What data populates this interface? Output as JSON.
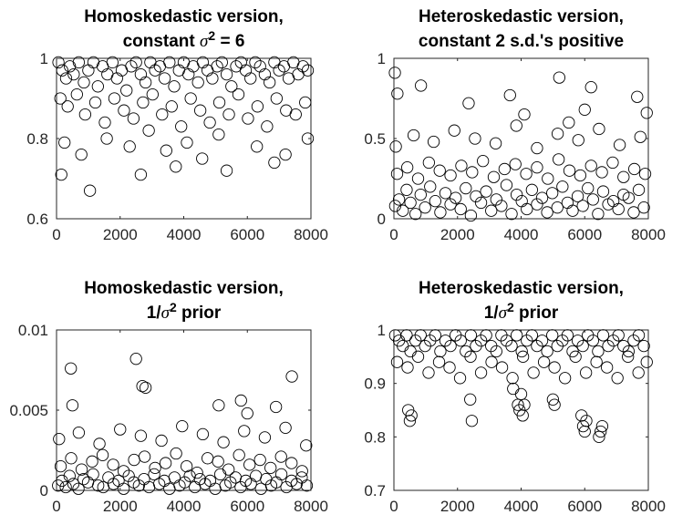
{
  "chart_data": [
    {
      "type": "scatter",
      "title_parts": [
        [
          {
            "t": "Homoskedastic version,"
          }
        ],
        [
          {
            "t": "constant "
          },
          {
            "t": "σ",
            "sym": true
          },
          {
            "t": "2",
            "sup": true
          },
          {
            "t": " = 6"
          }
        ]
      ],
      "xlim": [
        0,
        8000
      ],
      "ylim": [
        0.6,
        1.0
      ],
      "xticks": [
        0,
        2000,
        4000,
        6000,
        8000
      ],
      "yticks": [
        0.6,
        0.8,
        1.0
      ],
      "xtick_labels": [
        "0",
        "2000",
        "4000",
        "6000",
        "8000"
      ],
      "ytick_labels": [
        "0.6",
        "0.8",
        "1"
      ],
      "marker": "open-circle",
      "grid": false,
      "legend": null,
      "x": [
        60,
        180,
        300,
        420,
        540,
        700,
        860,
        1000,
        1160,
        1300,
        1450,
        1600,
        1760,
        1900,
        2050,
        2200,
        2350,
        2500,
        2650,
        2800,
        2950,
        3100,
        3250,
        3400,
        3550,
        3700,
        3850,
        4000,
        4150,
        4300,
        4450,
        4600,
        4750,
        4900,
        5050,
        5200,
        5350,
        5500,
        5650,
        5800,
        5950,
        6100,
        6250,
        6400,
        6550,
        6700,
        6850,
        7000,
        7150,
        7300,
        7450,
        7600,
        7750,
        7900,
        120,
        350,
        640,
        900,
        1220,
        1520,
        1820,
        2120,
        2420,
        2720,
        3020,
        3320,
        3620,
        3920,
        4220,
        4520,
        4820,
        5120,
        5420,
        5720,
        6020,
        6320,
        6620,
        6920,
        7220,
        7520,
        7820,
        250,
        780,
        1580,
        2300,
        2900,
        3450,
        4100,
        4580,
        5100,
        6300,
        7200,
        7900,
        150,
        1050,
        2650,
        3750,
        5350,
        6850
      ],
      "y": [
        0.99,
        0.97,
        0.95,
        0.98,
        0.96,
        0.99,
        0.94,
        0.97,
        0.99,
        0.93,
        0.98,
        0.96,
        0.99,
        0.95,
        0.97,
        0.92,
        0.98,
        0.99,
        0.96,
        0.94,
        0.99,
        0.97,
        0.98,
        0.95,
        0.99,
        0.93,
        0.97,
        0.99,
        0.96,
        0.98,
        0.94,
        0.99,
        0.97,
        0.95,
        0.98,
        0.99,
        0.96,
        0.93,
        0.98,
        0.99,
        0.97,
        0.95,
        0.99,
        0.98,
        0.96,
        0.94,
        0.99,
        0.97,
        0.98,
        0.95,
        0.99,
        0.96,
        0.98,
        0.97,
        0.9,
        0.88,
        0.91,
        0.86,
        0.89,
        0.84,
        0.9,
        0.87,
        0.85,
        0.89,
        0.91,
        0.86,
        0.88,
        0.83,
        0.9,
        0.87,
        0.84,
        0.89,
        0.86,
        0.91,
        0.85,
        0.88,
        0.83,
        0.9,
        0.87,
        0.86,
        0.89,
        0.79,
        0.76,
        0.8,
        0.78,
        0.82,
        0.77,
        0.79,
        0.75,
        0.81,
        0.78,
        0.76,
        0.8,
        0.71,
        0.67,
        0.71,
        0.73,
        0.72,
        0.74
      ]
    },
    {
      "type": "scatter",
      "title_parts": [
        [
          {
            "t": "Heteroskedastic version,"
          }
        ],
        [
          {
            "t": "constant 2 s.d.'s positive"
          }
        ]
      ],
      "xlim": [
        0,
        8000
      ],
      "ylim": [
        0,
        1.0
      ],
      "xticks": [
        0,
        2000,
        4000,
        6000,
        8000
      ],
      "yticks": [
        0,
        0.5,
        1.0
      ],
      "xtick_labels": [
        "0",
        "2000",
        "4000",
        "6000",
        "8000"
      ],
      "ytick_labels": [
        "0",
        "0.5",
        "1"
      ],
      "marker": "open-circle",
      "grid": false,
      "legend": null,
      "x": [
        40,
        160,
        280,
        400,
        520,
        680,
        840,
        980,
        1140,
        1300,
        1460,
        1620,
        1780,
        1940,
        2100,
        2260,
        2420,
        2580,
        2740,
        2900,
        3060,
        3220,
        3380,
        3540,
        3700,
        3860,
        4020,
        4180,
        4340,
        4500,
        4660,
        4820,
        4980,
        5140,
        5300,
        5460,
        5620,
        5780,
        5940,
        6100,
        6260,
        6420,
        6580,
        6740,
        6900,
        7060,
        7220,
        7380,
        7540,
        7700,
        7860,
        100,
        420,
        760,
        1100,
        1440,
        1780,
        2120,
        2460,
        2800,
        3140,
        3480,
        3820,
        4160,
        4500,
        4840,
        5180,
        5520,
        5860,
        6200,
        6540,
        6880,
        7220,
        7560,
        7900,
        60,
        620,
        1250,
        1900,
        2550,
        3200,
        3850,
        4500,
        5150,
        5800,
        6450,
        7100,
        7750,
        30,
        110,
        850,
        2350,
        3650,
        4100,
        5200,
        5500,
        6000,
        6200,
        7650,
        7950
      ],
      "y": [
        0.08,
        0.12,
        0.05,
        0.18,
        0.1,
        0.03,
        0.15,
        0.07,
        0.2,
        0.11,
        0.04,
        0.16,
        0.09,
        0.13,
        0.06,
        0.19,
        0.02,
        0.14,
        0.1,
        0.17,
        0.05,
        0.12,
        0.08,
        0.21,
        0.03,
        0.15,
        0.11,
        0.06,
        0.18,
        0.09,
        0.13,
        0.04,
        0.16,
        0.07,
        0.2,
        0.1,
        0.05,
        0.14,
        0.08,
        0.19,
        0.12,
        0.03,
        0.17,
        0.09,
        0.11,
        0.06,
        0.15,
        0.13,
        0.04,
        0.18,
        0.07,
        0.28,
        0.32,
        0.25,
        0.35,
        0.3,
        0.27,
        0.33,
        0.29,
        0.36,
        0.26,
        0.31,
        0.34,
        0.28,
        0.32,
        0.25,
        0.37,
        0.3,
        0.27,
        0.33,
        0.29,
        0.35,
        0.26,
        0.31,
        0.28,
        0.45,
        0.52,
        0.48,
        0.55,
        0.5,
        0.47,
        0.58,
        0.44,
        0.53,
        0.49,
        0.56,
        0.46,
        0.51,
        0.91,
        0.78,
        0.83,
        0.72,
        0.77,
        0.65,
        0.88,
        0.6,
        0.68,
        0.82,
        0.76,
        0.66
      ]
    },
    {
      "type": "scatter",
      "title_parts": [
        [
          {
            "t": "Homoskedastic version,"
          }
        ],
        [
          {
            "t": "1/"
          },
          {
            "t": "σ",
            "sym": true
          },
          {
            "t": "2",
            "sup": true
          },
          {
            "t": " prior"
          }
        ]
      ],
      "xlim": [
        0,
        8000
      ],
      "ylim": [
        0,
        0.01
      ],
      "xticks": [
        0,
        2000,
        4000,
        6000,
        8000
      ],
      "yticks": [
        0,
        0.005,
        0.01
      ],
      "xtick_labels": [
        "0",
        "2000",
        "4000",
        "6000",
        "8000"
      ],
      "ytick_labels": [
        "0",
        "0.005",
        "0.01"
      ],
      "marker": "open-circle",
      "grid": false,
      "legend": null,
      "x": [
        50,
        170,
        290,
        410,
        530,
        690,
        850,
        990,
        1150,
        1310,
        1470,
        1630,
        1790,
        1950,
        2110,
        2270,
        2430,
        2590,
        2750,
        2910,
        3070,
        3230,
        3390,
        3550,
        3710,
        3870,
        4030,
        4190,
        4350,
        4510,
        4670,
        4830,
        4990,
        5150,
        5310,
        5470,
        5630,
        5790,
        5950,
        6110,
        6270,
        6430,
        6590,
        6750,
        6910,
        7070,
        7230,
        7390,
        7550,
        7710,
        7870,
        130,
        460,
        790,
        1120,
        1450,
        1780,
        2110,
        2440,
        2770,
        3100,
        3430,
        3760,
        4090,
        4420,
        4750,
        5080,
        5410,
        5740,
        6070,
        6400,
        6730,
        7060,
        7390,
        7720,
        80,
        700,
        1350,
        2000,
        2650,
        3300,
        3950,
        4600,
        5250,
        5900,
        6550,
        7200,
        7850,
        450,
        500,
        2500,
        2700,
        2800,
        5100,
        5800,
        6000,
        6900,
        7400
      ],
      "y": [
        0.0003,
        0.0006,
        0.0002,
        0.0009,
        0.0004,
        0.0001,
        0.0007,
        0.0005,
        0.001,
        0.0003,
        0.0002,
        0.0008,
        0.0004,
        0.0006,
        0.0001,
        0.0009,
        0.0005,
        0.0003,
        0.0007,
        0.0002,
        0.001,
        0.0004,
        0.0006,
        0.0001,
        0.0008,
        0.0003,
        0.0005,
        0.0009,
        0.0002,
        0.0007,
        0.0004,
        0.0006,
        0.0001,
        0.001,
        0.0003,
        0.0005,
        0.0008,
        0.0002,
        0.0006,
        0.0004,
        0.0009,
        0.0001,
        0.0007,
        0.0003,
        0.0005,
        0.001,
        0.0002,
        0.0006,
        0.0004,
        0.0008,
        0.0003,
        0.0015,
        0.002,
        0.0013,
        0.0018,
        0.0022,
        0.0016,
        0.0012,
        0.0019,
        0.0021,
        0.0014,
        0.0017,
        0.0023,
        0.0015,
        0.0011,
        0.002,
        0.0018,
        0.0013,
        0.0022,
        0.0016,
        0.0019,
        0.0014,
        0.0021,
        0.0017,
        0.0012,
        0.0032,
        0.0036,
        0.0029,
        0.0038,
        0.0034,
        0.0031,
        0.004,
        0.0035,
        0.003,
        0.0037,
        0.0033,
        0.0039,
        0.0028,
        0.0076,
        0.0053,
        0.0082,
        0.0065,
        0.0064,
        0.0053,
        0.0056,
        0.0048,
        0.0052,
        0.0071
      ]
    },
    {
      "type": "scatter",
      "title_parts": [
        [
          {
            "t": "Heteroskedastic version,"
          }
        ],
        [
          {
            "t": "1/"
          },
          {
            "t": "σ",
            "sym": true
          },
          {
            "t": "2",
            "sup": true
          },
          {
            "t": " prior"
          }
        ]
      ],
      "xlim": [
        0,
        8000
      ],
      "ylim": [
        0.7,
        1.0
      ],
      "xticks": [
        0,
        2000,
        4000,
        6000,
        8000
      ],
      "yticks": [
        0.7,
        0.8,
        0.9,
        1.0
      ],
      "xtick_labels": [
        "0",
        "2000",
        "4000",
        "6000",
        "8000"
      ],
      "ytick_labels": [
        "0.7",
        "0.8",
        "0.9",
        "1"
      ],
      "marker": "open-circle",
      "grid": false,
      "legend": null,
      "x": [
        40,
        160,
        280,
        400,
        520,
        680,
        840,
        980,
        1140,
        1300,
        1460,
        1620,
        1780,
        1940,
        2100,
        2260,
        2420,
        2580,
        2740,
        2900,
        3060,
        3220,
        3380,
        3540,
        3700,
        3860,
        4020,
        4180,
        4340,
        4500,
        4660,
        4820,
        4980,
        5140,
        5300,
        5460,
        5620,
        5780,
        5940,
        6100,
        6260,
        6420,
        6580,
        6740,
        6900,
        7060,
        7220,
        7380,
        7540,
        7700,
        7860,
        100,
        430,
        760,
        1090,
        1420,
        1750,
        2080,
        2410,
        2740,
        3070,
        3400,
        3730,
        4060,
        4390,
        4720,
        5050,
        5380,
        5710,
        6040,
        6370,
        6700,
        7030,
        7360,
        7690,
        7950,
        450,
        500,
        550,
        2400,
        2450,
        3900,
        3950,
        5000,
        5050,
        5900,
        5950,
        6000,
        6050,
        6450,
        6500,
        6550,
        4050,
        4000,
        3750,
        4100
      ],
      "y": [
        0.99,
        0.98,
        0.97,
        0.99,
        0.96,
        0.98,
        0.99,
        0.97,
        0.98,
        0.99,
        0.96,
        0.98,
        0.97,
        0.99,
        0.98,
        0.96,
        0.99,
        0.97,
        0.98,
        0.99,
        0.97,
        0.96,
        0.99,
        0.98,
        0.97,
        0.99,
        0.96,
        0.98,
        0.99,
        0.97,
        0.98,
        0.96,
        0.99,
        0.97,
        0.98,
        0.99,
        0.96,
        0.98,
        0.97,
        0.99,
        0.98,
        0.96,
        0.99,
        0.97,
        0.98,
        0.99,
        0.97,
        0.96,
        0.98,
        0.99,
        0.97,
        0.94,
        0.93,
        0.95,
        0.92,
        0.94,
        0.93,
        0.91,
        0.95,
        0.92,
        0.94,
        0.93,
        0.91,
        0.95,
        0.92,
        0.94,
        0.93,
        0.91,
        0.95,
        0.92,
        0.94,
        0.93,
        0.91,
        0.95,
        0.92,
        0.94,
        0.85,
        0.83,
        0.84,
        0.87,
        0.83,
        0.86,
        0.85,
        0.87,
        0.86,
        0.84,
        0.82,
        0.81,
        0.83,
        0.8,
        0.81,
        0.82,
        0.84,
        0.88,
        0.89,
        0.86
      ]
    }
  ]
}
